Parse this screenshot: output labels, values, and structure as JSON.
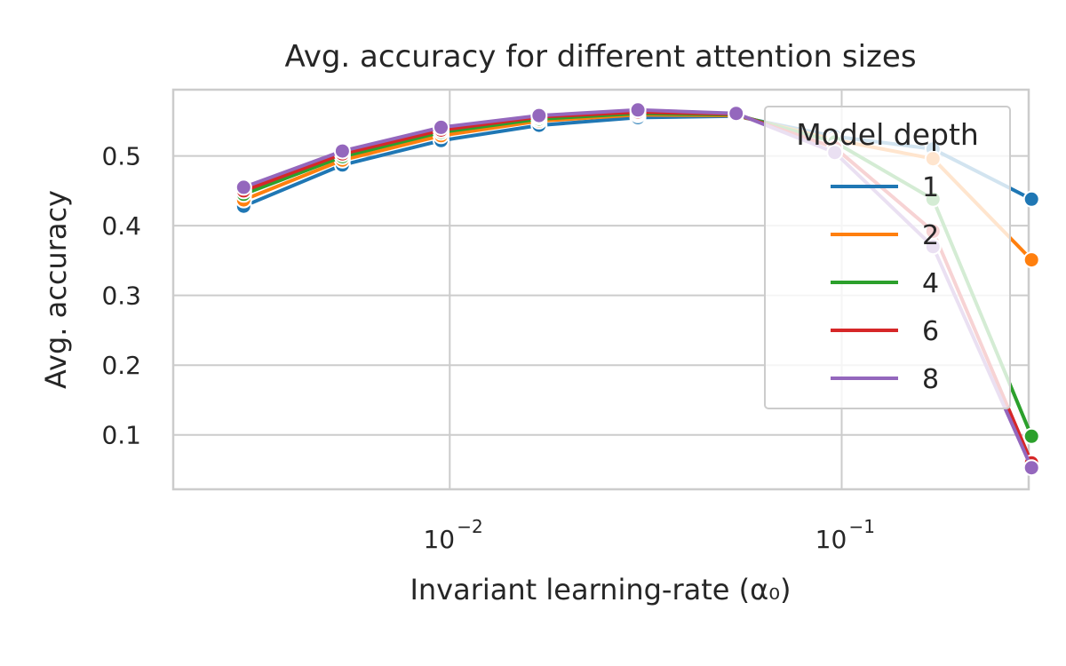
{
  "chart_data": {
    "type": "line",
    "title": "Avg. accuracy for different attention sizes",
    "xlabel": "Invariant learning-rate (α₀)",
    "ylabel": "Avg. accuracy",
    "xscale": "log",
    "xlim": [
      0.00197,
      0.3
    ],
    "ylim": [
      0.022,
      0.595
    ],
    "grid": true,
    "x_ticks": [
      {
        "value": 0.01,
        "base": "10",
        "exp": "−2"
      },
      {
        "value": 0.1,
        "base": "10",
        "exp": "−1"
      }
    ],
    "y_ticks": [
      0.1,
      0.2,
      0.3,
      0.4,
      0.5
    ],
    "y_tick_labels": [
      "0.1",
      "0.2",
      "0.3",
      "0.4",
      "0.5"
    ],
    "x": [
      0.00298,
      0.00532,
      0.0095,
      0.0169,
      0.0302,
      0.0538,
      0.096,
      0.171,
      0.305
    ],
    "legend": {
      "title": "Model depth",
      "position": "upper right"
    },
    "series": [
      {
        "name": "1",
        "color": "#1f77b4",
        "values": [
          0.428,
          0.487,
          0.522,
          0.544,
          0.555,
          0.557,
          0.528,
          0.51,
          0.438
        ]
      },
      {
        "name": "2",
        "color": "#ff7f0e",
        "values": [
          0.437,
          0.494,
          0.529,
          0.55,
          0.559,
          0.558,
          0.523,
          0.496,
          0.351
        ]
      },
      {
        "name": "4",
        "color": "#2ca02c",
        "values": [
          0.445,
          0.499,
          0.534,
          0.553,
          0.561,
          0.559,
          0.52,
          0.438,
          0.098
        ]
      },
      {
        "name": "6",
        "color": "#d62728",
        "values": [
          0.45,
          0.503,
          0.537,
          0.556,
          0.563,
          0.56,
          0.512,
          0.392,
          0.06
        ]
      },
      {
        "name": "8",
        "color": "#9467bd",
        "values": [
          0.455,
          0.507,
          0.541,
          0.558,
          0.566,
          0.561,
          0.505,
          0.37,
          0.053
        ]
      }
    ]
  }
}
